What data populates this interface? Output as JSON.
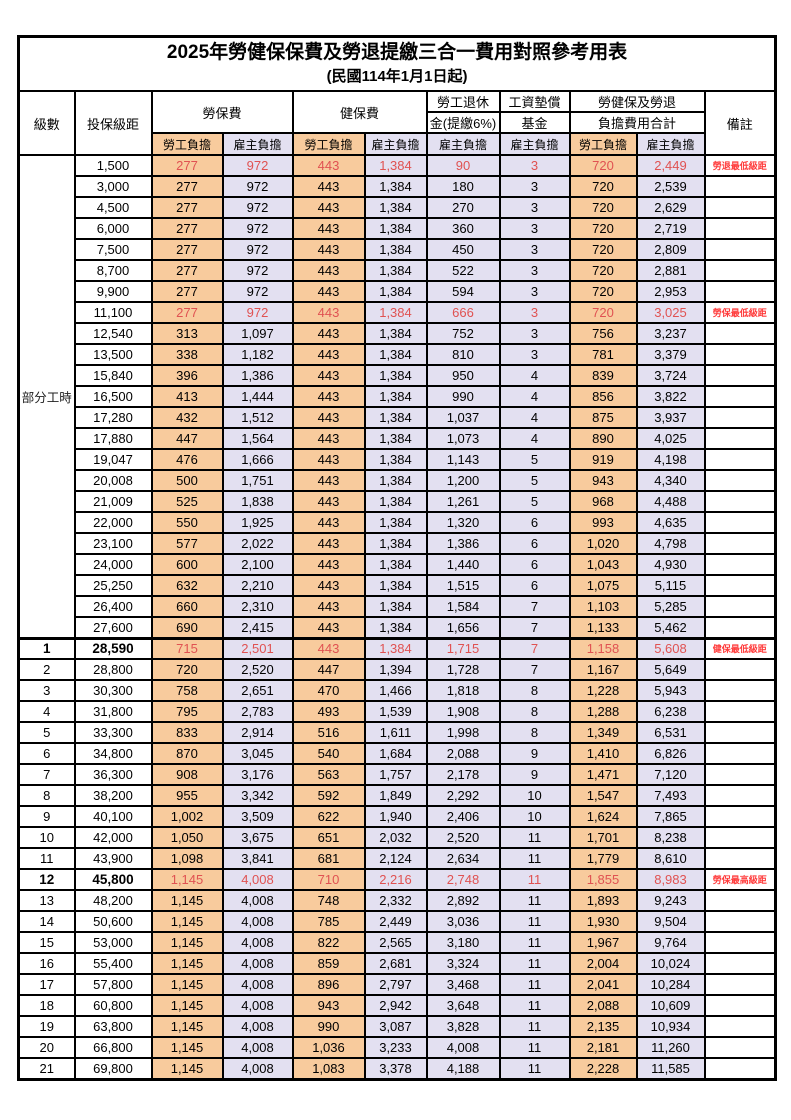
{
  "title": "2025年勞健保保費及勞退提繳三合一費用對照參考用表",
  "subtitle": "(民國114年1月1日起)",
  "colors": {
    "employee_column_bg": "#f8cb9d",
    "employer_column_bg": "#e3e0f1",
    "highlight_value_text": "#e05252",
    "remark_text": "#ff3b3b",
    "border": "#000000"
  },
  "header": {
    "level": "級數",
    "bracket": "投保級距",
    "labor_insurance": "勞保費",
    "health_insurance": "健保費",
    "pension_line1": "勞工退休",
    "pension_line2": "金(提繳6%)",
    "wage_fund_line1": "工資墊償",
    "wage_fund_line2": "基金",
    "total_line1": "勞健保及勞退",
    "total_line2": "負擔費用合計",
    "remark": "備註",
    "employee": "勞工負擔",
    "employer": "雇主負擔"
  },
  "rows": [
    {
      "level": "部分工時",
      "level_span": 23,
      "bracket": "1,500",
      "values": [
        "277",
        "972",
        "443",
        "1,384",
        "90",
        "3",
        "720",
        "2,449"
      ],
      "remark": "勞退最低級距",
      "red": true
    },
    {
      "bracket": "3,000",
      "values": [
        "277",
        "972",
        "443",
        "1,384",
        "180",
        "3",
        "720",
        "2,539"
      ],
      "remark": ""
    },
    {
      "bracket": "4,500",
      "values": [
        "277",
        "972",
        "443",
        "1,384",
        "270",
        "3",
        "720",
        "2,629"
      ],
      "remark": ""
    },
    {
      "bracket": "6,000",
      "values": [
        "277",
        "972",
        "443",
        "1,384",
        "360",
        "3",
        "720",
        "2,719"
      ],
      "remark": ""
    },
    {
      "bracket": "7,500",
      "values": [
        "277",
        "972",
        "443",
        "1,384",
        "450",
        "3",
        "720",
        "2,809"
      ],
      "remark": ""
    },
    {
      "bracket": "8,700",
      "values": [
        "277",
        "972",
        "443",
        "1,384",
        "522",
        "3",
        "720",
        "2,881"
      ],
      "remark": ""
    },
    {
      "bracket": "9,900",
      "values": [
        "277",
        "972",
        "443",
        "1,384",
        "594",
        "3",
        "720",
        "2,953"
      ],
      "remark": ""
    },
    {
      "bracket": "11,100",
      "values": [
        "277",
        "972",
        "443",
        "1,384",
        "666",
        "3",
        "720",
        "3,025"
      ],
      "remark": "勞保最低級距",
      "red": true
    },
    {
      "bracket": "12,540",
      "values": [
        "313",
        "1,097",
        "443",
        "1,384",
        "752",
        "3",
        "756",
        "3,237"
      ],
      "remark": ""
    },
    {
      "bracket": "13,500",
      "values": [
        "338",
        "1,182",
        "443",
        "1,384",
        "810",
        "3",
        "781",
        "3,379"
      ],
      "remark": ""
    },
    {
      "bracket": "15,840",
      "values": [
        "396",
        "1,386",
        "443",
        "1,384",
        "950",
        "4",
        "839",
        "3,724"
      ],
      "remark": ""
    },
    {
      "bracket": "16,500",
      "values": [
        "413",
        "1,444",
        "443",
        "1,384",
        "990",
        "4",
        "856",
        "3,822"
      ],
      "remark": ""
    },
    {
      "bracket": "17,280",
      "values": [
        "432",
        "1,512",
        "443",
        "1,384",
        "1,037",
        "4",
        "875",
        "3,937"
      ],
      "remark": ""
    },
    {
      "bracket": "17,880",
      "values": [
        "447",
        "1,564",
        "443",
        "1,384",
        "1,073",
        "4",
        "890",
        "4,025"
      ],
      "remark": ""
    },
    {
      "bracket": "19,047",
      "values": [
        "476",
        "1,666",
        "443",
        "1,384",
        "1,143",
        "5",
        "919",
        "4,198"
      ],
      "remark": ""
    },
    {
      "bracket": "20,008",
      "values": [
        "500",
        "1,751",
        "443",
        "1,384",
        "1,200",
        "5",
        "943",
        "4,340"
      ],
      "remark": ""
    },
    {
      "bracket": "21,009",
      "values": [
        "525",
        "1,838",
        "443",
        "1,384",
        "1,261",
        "5",
        "968",
        "4,488"
      ],
      "remark": ""
    },
    {
      "bracket": "22,000",
      "values": [
        "550",
        "1,925",
        "443",
        "1,384",
        "1,320",
        "6",
        "993",
        "4,635"
      ],
      "remark": ""
    },
    {
      "bracket": "23,100",
      "values": [
        "577",
        "2,022",
        "443",
        "1,384",
        "1,386",
        "6",
        "1,020",
        "4,798"
      ],
      "remark": ""
    },
    {
      "bracket": "24,000",
      "values": [
        "600",
        "2,100",
        "443",
        "1,384",
        "1,440",
        "6",
        "1,043",
        "4,930"
      ],
      "remark": ""
    },
    {
      "bracket": "25,250",
      "values": [
        "632",
        "2,210",
        "443",
        "1,384",
        "1,515",
        "6",
        "1,075",
        "5,115"
      ],
      "remark": ""
    },
    {
      "bracket": "26,400",
      "values": [
        "660",
        "2,310",
        "443",
        "1,384",
        "1,584",
        "7",
        "1,103",
        "5,285"
      ],
      "remark": ""
    },
    {
      "bracket": "27,600",
      "values": [
        "690",
        "2,415",
        "443",
        "1,384",
        "1,656",
        "7",
        "1,133",
        "5,462"
      ],
      "remark": ""
    },
    {
      "level": "1",
      "bracket": "28,590",
      "values": [
        "715",
        "2,501",
        "443",
        "1,384",
        "1,715",
        "7",
        "1,158",
        "5,608"
      ],
      "remark": "健保最低級距",
      "red": true,
      "bold": true,
      "thick_top": true
    },
    {
      "level": "2",
      "bracket": "28,800",
      "values": [
        "720",
        "2,520",
        "447",
        "1,394",
        "1,728",
        "7",
        "1,167",
        "5,649"
      ],
      "remark": ""
    },
    {
      "level": "3",
      "bracket": "30,300",
      "values": [
        "758",
        "2,651",
        "470",
        "1,466",
        "1,818",
        "8",
        "1,228",
        "5,943"
      ],
      "remark": ""
    },
    {
      "level": "4",
      "bracket": "31,800",
      "values": [
        "795",
        "2,783",
        "493",
        "1,539",
        "1,908",
        "8",
        "1,288",
        "6,238"
      ],
      "remark": ""
    },
    {
      "level": "5",
      "bracket": "33,300",
      "values": [
        "833",
        "2,914",
        "516",
        "1,611",
        "1,998",
        "8",
        "1,349",
        "6,531"
      ],
      "remark": ""
    },
    {
      "level": "6",
      "bracket": "34,800",
      "values": [
        "870",
        "3,045",
        "540",
        "1,684",
        "2,088",
        "9",
        "1,410",
        "6,826"
      ],
      "remark": ""
    },
    {
      "level": "7",
      "bracket": "36,300",
      "values": [
        "908",
        "3,176",
        "563",
        "1,757",
        "2,178",
        "9",
        "1,471",
        "7,120"
      ],
      "remark": ""
    },
    {
      "level": "8",
      "bracket": "38,200",
      "values": [
        "955",
        "3,342",
        "592",
        "1,849",
        "2,292",
        "10",
        "1,547",
        "7,493"
      ],
      "remark": ""
    },
    {
      "level": "9",
      "bracket": "40,100",
      "values": [
        "1,002",
        "3,509",
        "622",
        "1,940",
        "2,406",
        "10",
        "1,624",
        "7,865"
      ],
      "remark": ""
    },
    {
      "level": "10",
      "bracket": "42,000",
      "values": [
        "1,050",
        "3,675",
        "651",
        "2,032",
        "2,520",
        "11",
        "1,701",
        "8,238"
      ],
      "remark": ""
    },
    {
      "level": "11",
      "bracket": "43,900",
      "values": [
        "1,098",
        "3,841",
        "681",
        "2,124",
        "2,634",
        "11",
        "1,779",
        "8,610"
      ],
      "remark": ""
    },
    {
      "level": "12",
      "bracket": "45,800",
      "values": [
        "1,145",
        "4,008",
        "710",
        "2,216",
        "2,748",
        "11",
        "1,855",
        "8,983"
      ],
      "remark": "勞保最高級距",
      "red": true,
      "bold": true
    },
    {
      "level": "13",
      "bracket": "48,200",
      "values": [
        "1,145",
        "4,008",
        "748",
        "2,332",
        "2,892",
        "11",
        "1,893",
        "9,243"
      ],
      "remark": ""
    },
    {
      "level": "14",
      "bracket": "50,600",
      "values": [
        "1,145",
        "4,008",
        "785",
        "2,449",
        "3,036",
        "11",
        "1,930",
        "9,504"
      ],
      "remark": ""
    },
    {
      "level": "15",
      "bracket": "53,000",
      "values": [
        "1,145",
        "4,008",
        "822",
        "2,565",
        "3,180",
        "11",
        "1,967",
        "9,764"
      ],
      "remark": ""
    },
    {
      "level": "16",
      "bracket": "55,400",
      "values": [
        "1,145",
        "4,008",
        "859",
        "2,681",
        "3,324",
        "11",
        "2,004",
        "10,024"
      ],
      "remark": ""
    },
    {
      "level": "17",
      "bracket": "57,800",
      "values": [
        "1,145",
        "4,008",
        "896",
        "2,797",
        "3,468",
        "11",
        "2,041",
        "10,284"
      ],
      "remark": ""
    },
    {
      "level": "18",
      "bracket": "60,800",
      "values": [
        "1,145",
        "4,008",
        "943",
        "2,942",
        "3,648",
        "11",
        "2,088",
        "10,609"
      ],
      "remark": ""
    },
    {
      "level": "19",
      "bracket": "63,800",
      "values": [
        "1,145",
        "4,008",
        "990",
        "3,087",
        "3,828",
        "11",
        "2,135",
        "10,934"
      ],
      "remark": ""
    },
    {
      "level": "20",
      "bracket": "66,800",
      "values": [
        "1,145",
        "4,008",
        "1,036",
        "3,233",
        "4,008",
        "11",
        "2,181",
        "11,260"
      ],
      "remark": ""
    },
    {
      "level": "21",
      "bracket": "69,800",
      "values": [
        "1,145",
        "4,008",
        "1,083",
        "3,378",
        "4,188",
        "11",
        "2,228",
        "11,585"
      ],
      "remark": ""
    }
  ]
}
